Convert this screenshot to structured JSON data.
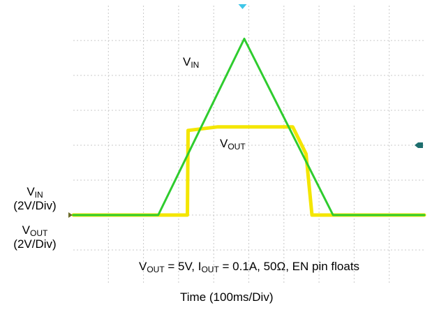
{
  "chart_data": {
    "type": "line",
    "xlabel": "Time  (100ms/Div)",
    "x_unit": "ms",
    "x_div": 100,
    "xlim": [
      0,
      1000
    ],
    "y_unit": "V",
    "y_div": 2,
    "ylim": [
      -4,
      12
    ],
    "grid": true,
    "annotation": {
      "vout_main": "V",
      "vout_sub": "OUT",
      "text1": " = 5V, I",
      "iout_sub": "OUT",
      "text2": " = 0.1A, 50Ω, EN pin floats"
    },
    "series": [
      {
        "name_main": "V",
        "name_sub": "IN",
        "scale_main": "(2V/Div)",
        "color": "#2ecc2e",
        "points": [
          [
            0,
            0
          ],
          [
            242,
            0
          ],
          [
            487,
            10.1
          ],
          [
            740,
            0
          ],
          [
            1000,
            0
          ]
        ]
      },
      {
        "name_main": "V",
        "name_sub": "OUT",
        "scale_main": "(2V/Div)",
        "color": "#f4e600",
        "points": [
          [
            0,
            0
          ],
          [
            325,
            0
          ],
          [
            327,
            4.85
          ],
          [
            412,
            5.05
          ],
          [
            625,
            5.05
          ],
          [
            663,
            3.5
          ],
          [
            680,
            0
          ],
          [
            1000,
            0
          ]
        ]
      }
    ],
    "markers": {
      "trigger_color": "#3fc6e8",
      "ref_color": "#1e6e6e"
    }
  }
}
